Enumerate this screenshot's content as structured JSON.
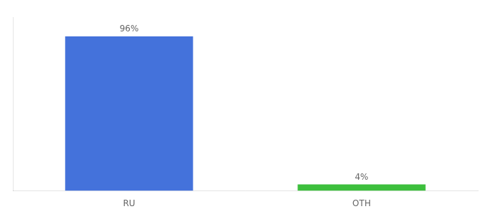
{
  "chart_data": {
    "type": "bar",
    "categories": [
      "RU",
      "OTH"
    ],
    "values": [
      96,
      4
    ],
    "value_labels": [
      "96%",
      "4%"
    ],
    "colors": [
      "#4472db",
      "#3dbf3d"
    ],
    "ylim": [
      0,
      108
    ],
    "data_labels": true,
    "tick_labels": "x",
    "grid": false
  }
}
